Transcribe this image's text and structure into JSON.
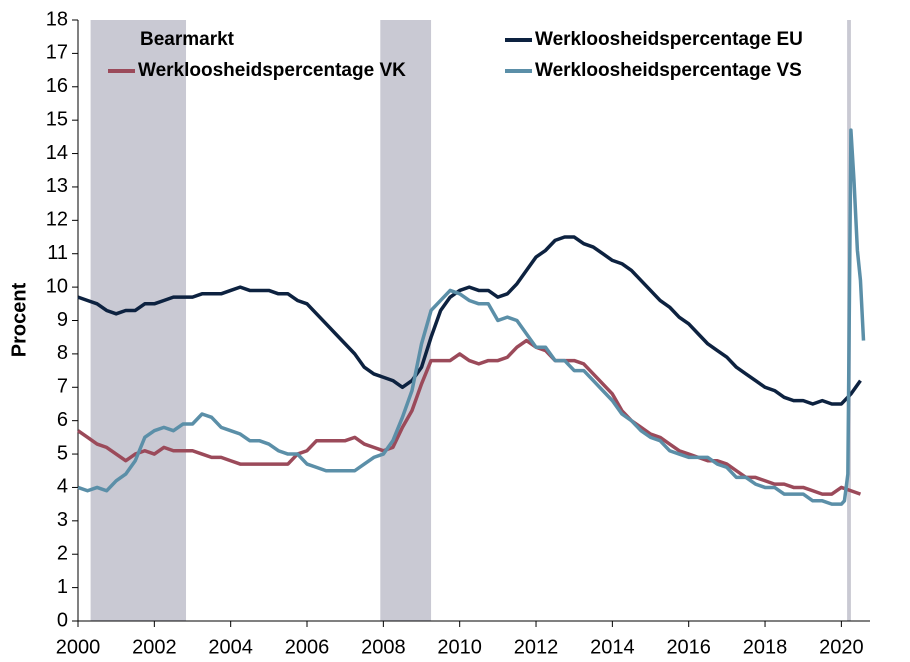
{
  "chart_data": {
    "type": "line",
    "ylabel": "Procent",
    "xlim": [
      2000,
      2020.75
    ],
    "ylim": [
      0,
      18
    ],
    "xticks": [
      2000,
      2002,
      2004,
      2006,
      2008,
      2010,
      2012,
      2014,
      2016,
      2018,
      2020
    ],
    "yticks": [
      0,
      1,
      2,
      3,
      4,
      5,
      6,
      7,
      8,
      9,
      10,
      11,
      12,
      13,
      14,
      15,
      16,
      17,
      18
    ],
    "bearmarkt": {
      "name": "Bearmarkt",
      "color": "#c9c9d3",
      "ranges": [
        [
          2000.33,
          2002.83
        ],
        [
          2007.92,
          2009.25
        ],
        [
          2020.15,
          2020.25
        ]
      ]
    },
    "series": [
      {
        "name": "Werkloosheidspercentage EU",
        "color": "#0d2240",
        "x": [
          2000,
          2000.25,
          2000.5,
          2000.75,
          2001,
          2001.25,
          2001.5,
          2001.75,
          2002,
          2002.25,
          2002.5,
          2002.75,
          2003,
          2003.25,
          2003.5,
          2003.75,
          2004,
          2004.25,
          2004.5,
          2004.75,
          2005,
          2005.25,
          2005.5,
          2005.75,
          2006,
          2006.25,
          2006.5,
          2006.75,
          2007,
          2007.25,
          2007.5,
          2007.75,
          2008,
          2008.25,
          2008.5,
          2008.75,
          2009,
          2009.25,
          2009.5,
          2009.75,
          2010,
          2010.25,
          2010.5,
          2010.75,
          2011,
          2011.25,
          2011.5,
          2011.75,
          2012,
          2012.25,
          2012.5,
          2012.75,
          2013,
          2013.25,
          2013.5,
          2013.75,
          2014,
          2014.25,
          2014.5,
          2014.75,
          2015,
          2015.25,
          2015.5,
          2015.75,
          2016,
          2016.25,
          2016.5,
          2016.75,
          2017,
          2017.25,
          2017.5,
          2017.75,
          2018,
          2018.25,
          2018.5,
          2018.75,
          2019,
          2019.25,
          2019.5,
          2019.75,
          2020,
          2020.25,
          2020.5
        ],
        "values": [
          9.7,
          9.6,
          9.5,
          9.3,
          9.2,
          9.3,
          9.3,
          9.5,
          9.5,
          9.6,
          9.7,
          9.7,
          9.7,
          9.8,
          9.8,
          9.8,
          9.9,
          10.0,
          9.9,
          9.9,
          9.9,
          9.8,
          9.8,
          9.6,
          9.5,
          9.2,
          8.9,
          8.6,
          8.3,
          8.0,
          7.6,
          7.4,
          7.3,
          7.2,
          7.0,
          7.2,
          7.6,
          8.5,
          9.3,
          9.7,
          9.9,
          10.0,
          9.9,
          9.9,
          9.7,
          9.8,
          10.1,
          10.5,
          10.9,
          11.1,
          11.4,
          11.5,
          11.5,
          11.3,
          11.2,
          11.0,
          10.8,
          10.7,
          10.5,
          10.2,
          9.9,
          9.6,
          9.4,
          9.1,
          8.9,
          8.6,
          8.3,
          8.1,
          7.9,
          7.6,
          7.4,
          7.2,
          7.0,
          6.9,
          6.7,
          6.6,
          6.6,
          6.5,
          6.6,
          6.5,
          6.5,
          6.8,
          7.2
        ]
      },
      {
        "name": "Werkloosheidspercentage VK",
        "color": "#9b4a5a",
        "x": [
          2000,
          2000.25,
          2000.5,
          2000.75,
          2001,
          2001.25,
          2001.5,
          2001.75,
          2002,
          2002.25,
          2002.5,
          2002.75,
          2003,
          2003.25,
          2003.5,
          2003.75,
          2004,
          2004.25,
          2004.5,
          2004.75,
          2005,
          2005.25,
          2005.5,
          2005.75,
          2006,
          2006.25,
          2006.5,
          2006.75,
          2007,
          2007.25,
          2007.5,
          2007.75,
          2008,
          2008.25,
          2008.5,
          2008.75,
          2009,
          2009.25,
          2009.5,
          2009.75,
          2010,
          2010.25,
          2010.5,
          2010.75,
          2011,
          2011.25,
          2011.5,
          2011.75,
          2012,
          2012.25,
          2012.5,
          2012.75,
          2013,
          2013.25,
          2013.5,
          2013.75,
          2014,
          2014.25,
          2014.5,
          2014.75,
          2015,
          2015.25,
          2015.5,
          2015.75,
          2016,
          2016.25,
          2016.5,
          2016.75,
          2017,
          2017.25,
          2017.5,
          2017.75,
          2018,
          2018.25,
          2018.5,
          2018.75,
          2019,
          2019.25,
          2019.5,
          2019.75,
          2020,
          2020.25,
          2020.5
        ],
        "values": [
          5.7,
          5.5,
          5.3,
          5.2,
          5.0,
          4.8,
          5.0,
          5.1,
          5.0,
          5.2,
          5.1,
          5.1,
          5.1,
          5.0,
          4.9,
          4.9,
          4.8,
          4.7,
          4.7,
          4.7,
          4.7,
          4.7,
          4.7,
          5.0,
          5.1,
          5.4,
          5.4,
          5.4,
          5.4,
          5.5,
          5.3,
          5.2,
          5.1,
          5.2,
          5.8,
          6.3,
          7.1,
          7.8,
          7.8,
          7.8,
          8.0,
          7.8,
          7.7,
          7.8,
          7.8,
          7.9,
          8.2,
          8.4,
          8.2,
          8.1,
          7.8,
          7.8,
          7.8,
          7.7,
          7.4,
          7.1,
          6.8,
          6.3,
          6.0,
          5.8,
          5.6,
          5.5,
          5.3,
          5.1,
          5.0,
          4.9,
          4.8,
          4.8,
          4.7,
          4.5,
          4.3,
          4.3,
          4.2,
          4.1,
          4.1,
          4.0,
          4.0,
          3.9,
          3.8,
          3.8,
          4.0,
          3.9,
          3.8
        ]
      },
      {
        "name": "Werkloosheidspercentage VS",
        "color": "#5b8fa8",
        "x": [
          2000,
          2000.25,
          2000.5,
          2000.75,
          2001,
          2001.25,
          2001.5,
          2001.75,
          2002,
          2002.25,
          2002.5,
          2002.75,
          2003,
          2003.25,
          2003.5,
          2003.75,
          2004,
          2004.25,
          2004.5,
          2004.75,
          2005,
          2005.25,
          2005.5,
          2005.75,
          2006,
          2006.25,
          2006.5,
          2006.75,
          2007,
          2007.25,
          2007.5,
          2007.75,
          2008,
          2008.25,
          2008.5,
          2008.75,
          2009,
          2009.25,
          2009.5,
          2009.75,
          2010,
          2010.25,
          2010.5,
          2010.75,
          2011,
          2011.25,
          2011.5,
          2011.75,
          2012,
          2012.25,
          2012.5,
          2012.75,
          2013,
          2013.25,
          2013.5,
          2013.75,
          2014,
          2014.25,
          2014.5,
          2014.75,
          2015,
          2015.25,
          2015.5,
          2015.75,
          2016,
          2016.25,
          2016.5,
          2016.75,
          2017,
          2017.25,
          2017.5,
          2017.75,
          2018,
          2018.25,
          2018.5,
          2018.75,
          2019,
          2019.25,
          2019.5,
          2019.75,
          2020,
          2020.08,
          2020.17,
          2020.25,
          2020.33,
          2020.42,
          2020.5,
          2020.58
        ],
        "values": [
          4.0,
          3.9,
          4.0,
          3.9,
          4.2,
          4.4,
          4.8,
          5.5,
          5.7,
          5.8,
          5.7,
          5.9,
          5.9,
          6.2,
          6.1,
          5.8,
          5.7,
          5.6,
          5.4,
          5.4,
          5.3,
          5.1,
          5.0,
          5.0,
          4.7,
          4.6,
          4.5,
          4.5,
          4.5,
          4.5,
          4.7,
          4.9,
          5.0,
          5.4,
          6.1,
          6.9,
          8.3,
          9.3,
          9.6,
          9.9,
          9.8,
          9.6,
          9.5,
          9.5,
          9.0,
          9.1,
          9.0,
          8.6,
          8.2,
          8.2,
          7.8,
          7.8,
          7.5,
          7.5,
          7.2,
          6.9,
          6.6,
          6.2,
          6.0,
          5.7,
          5.5,
          5.4,
          5.1,
          5.0,
          4.9,
          4.9,
          4.9,
          4.7,
          4.6,
          4.3,
          4.3,
          4.1,
          4.0,
          4.0,
          3.8,
          3.8,
          3.8,
          3.6,
          3.6,
          3.5,
          3.5,
          3.6,
          4.4,
          14.7,
          13.2,
          11.1,
          10.2,
          8.4
        ]
      }
    ]
  }
}
